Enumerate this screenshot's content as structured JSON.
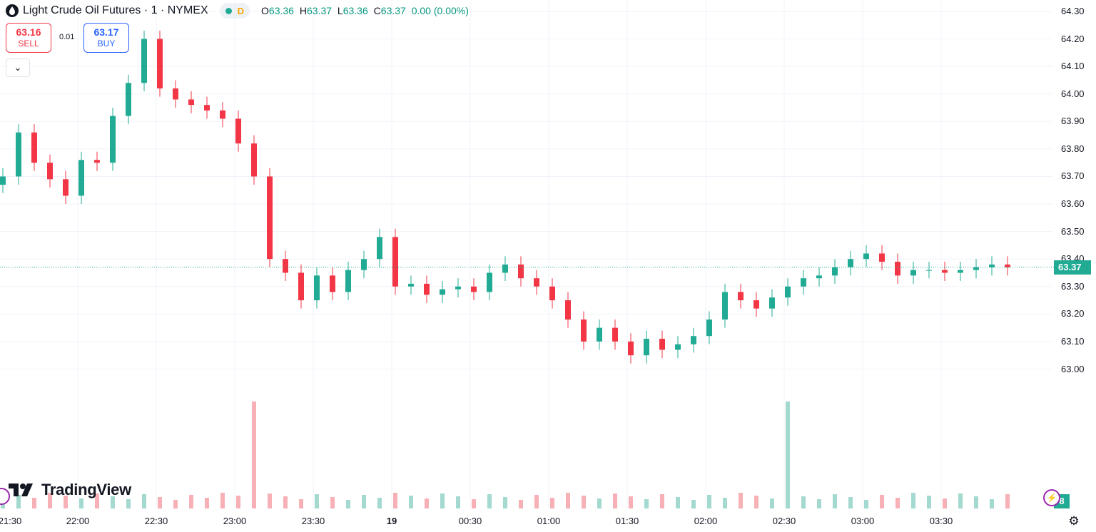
{
  "legend": {
    "title": "Light Crude Oil Futures · 1 · NYMEX",
    "status_badge": "D",
    "o_label": "O",
    "o_value": "63.36",
    "h_label": "H",
    "h_value": "63.37",
    "l_label": "L",
    "l_value": "63.36",
    "c_label": "C",
    "c_value": "63.37",
    "change": "0.00 (0.00%)"
  },
  "trade": {
    "sell_price": "63.16",
    "sell_label": "SELL",
    "spread": "0.01",
    "buy_price": "63.17",
    "buy_label": "BUY",
    "collapse_glyph": "⌄"
  },
  "logo_text": "TradingView",
  "last_price_tag": "63.37",
  "volume_tag": "8",
  "colors": {
    "up": "#22ab94",
    "down": "#f23645",
    "up_volume": "#a3d9cf",
    "down_volume": "#f7b1b6",
    "grid": "#f0f3fa"
  },
  "chart_data": {
    "type": "candlestick",
    "title": "Light Crude Oil Futures · 1 · NYMEX",
    "y_ticks": [
      "64.30",
      "64.20",
      "64.10",
      "64.00",
      "63.90",
      "63.80",
      "63.70",
      "63.60",
      "63.50",
      "63.40",
      "63.30",
      "63.20",
      "63.10",
      "63.00"
    ],
    "x_ticks": [
      "21:30",
      "22:00",
      "22:30",
      "23:00",
      "23:30",
      "19",
      "00:30",
      "01:00",
      "01:30",
      "02:00",
      "02:30",
      "03:00",
      "03:30"
    ],
    "ylim": [
      62.92,
      64.33
    ],
    "last_price": 63.37,
    "grid": true,
    "series": [
      {
        "time": "21:30",
        "close": 63.7
      },
      {
        "time": "21:36",
        "close": 63.86
      },
      {
        "time": "21:42",
        "close": 63.75
      },
      {
        "time": "21:48",
        "close": 63.69
      },
      {
        "time": "21:54",
        "close": 63.63
      },
      {
        "time": "22:00",
        "close": 63.76
      },
      {
        "time": "22:06",
        "close": 63.75
      },
      {
        "time": "22:12",
        "close": 63.92
      },
      {
        "time": "22:18",
        "close": 64.04
      },
      {
        "time": "22:24",
        "close": 64.2
      },
      {
        "time": "22:30",
        "close": 64.02
      },
      {
        "time": "22:36",
        "close": 63.98
      },
      {
        "time": "22:42",
        "close": 63.96
      },
      {
        "time": "22:48",
        "close": 63.94
      },
      {
        "time": "22:54",
        "close": 63.91
      },
      {
        "time": "23:00",
        "close": 63.82
      },
      {
        "time": "23:06",
        "close": 63.7
      },
      {
        "time": "23:12",
        "close": 63.4
      },
      {
        "time": "23:18",
        "close": 63.35
      },
      {
        "time": "23:24",
        "close": 63.25
      },
      {
        "time": "23:30",
        "close": 63.34
      },
      {
        "time": "23:36",
        "close": 63.28
      },
      {
        "time": "23:42",
        "close": 63.36
      },
      {
        "time": "23:48",
        "close": 63.4
      },
      {
        "time": "23:54",
        "close": 63.48
      },
      {
        "time": "00:00",
        "close": 63.3
      },
      {
        "time": "00:06",
        "close": 63.31
      },
      {
        "time": "00:12",
        "close": 63.27
      },
      {
        "time": "00:18",
        "close": 63.29
      },
      {
        "time": "00:24",
        "close": 63.3
      },
      {
        "time": "00:30",
        "close": 63.28
      },
      {
        "time": "00:36",
        "close": 63.35
      },
      {
        "time": "00:42",
        "close": 63.38
      },
      {
        "time": "00:48",
        "close": 63.33
      },
      {
        "time": "00:54",
        "close": 63.3
      },
      {
        "time": "01:00",
        "close": 63.25
      },
      {
        "time": "01:06",
        "close": 63.18
      },
      {
        "time": "01:12",
        "close": 63.1
      },
      {
        "time": "01:18",
        "close": 63.15
      },
      {
        "time": "01:24",
        "close": 63.1
      },
      {
        "time": "01:30",
        "close": 63.05
      },
      {
        "time": "01:36",
        "close": 63.11
      },
      {
        "time": "01:42",
        "close": 63.07
      },
      {
        "time": "01:48",
        "close": 63.09
      },
      {
        "time": "01:54",
        "close": 63.12
      },
      {
        "time": "02:00",
        "close": 63.18
      },
      {
        "time": "02:06",
        "close": 63.28
      },
      {
        "time": "02:12",
        "close": 63.25
      },
      {
        "time": "02:18",
        "close": 63.22
      },
      {
        "time": "02:24",
        "close": 63.26
      },
      {
        "time": "02:30",
        "close": 63.3
      },
      {
        "time": "02:36",
        "close": 63.33
      },
      {
        "time": "02:42",
        "close": 63.34
      },
      {
        "time": "02:48",
        "close": 63.37
      },
      {
        "time": "02:54",
        "close": 63.4
      },
      {
        "time": "03:00",
        "close": 63.42
      },
      {
        "time": "03:06",
        "close": 63.39
      },
      {
        "time": "03:12",
        "close": 63.34
      },
      {
        "time": "03:18",
        "close": 63.36
      },
      {
        "time": "03:24",
        "close": 63.36
      },
      {
        "time": "03:30",
        "close": 63.35
      },
      {
        "time": "03:36",
        "close": 63.36
      },
      {
        "time": "03:42",
        "close": 63.37
      },
      {
        "time": "03:48",
        "close": 63.38
      },
      {
        "time": "03:54",
        "close": 63.37
      }
    ],
    "volume_spikes": [
      {
        "time": "23:06",
        "value": "high"
      },
      {
        "time": "02:30",
        "value": "high"
      }
    ]
  }
}
